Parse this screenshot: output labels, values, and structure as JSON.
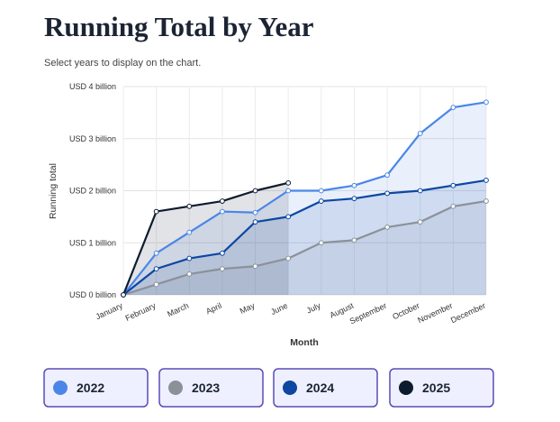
{
  "chart_data": {
    "type": "line",
    "title": "Running Total by Year",
    "subtitle": "Select years to display on the chart.",
    "x_label": "Month",
    "y_label": "Running total",
    "categories": [
      "January",
      "February",
      "March",
      "April",
      "May",
      "June",
      "July",
      "August",
      "September",
      "October",
      "November",
      "December"
    ],
    "series": [
      {
        "name": "2022",
        "color": "#4a86e8",
        "values": [
          0,
          0.8,
          1.2,
          1.6,
          1.58,
          2.0,
          2.0,
          2.1,
          2.3,
          3.1,
          3.6,
          3.7
        ]
      },
      {
        "name": "2023",
        "color": "#8a9199",
        "values": [
          0,
          0.2,
          0.4,
          0.5,
          0.55,
          0.7,
          1.0,
          1.05,
          1.3,
          1.4,
          1.7,
          1.8
        ]
      },
      {
        "name": "2024",
        "color": "#0d47a1",
        "values": [
          0,
          0.5,
          0.7,
          0.8,
          1.4,
          1.5,
          1.8,
          1.85,
          1.95,
          2.0,
          2.1,
          2.2
        ]
      },
      {
        "name": "2025",
        "color": "#0e1b2e",
        "values": [
          0,
          1.6,
          1.7,
          1.8,
          2.0,
          2.15,
          null,
          null,
          null,
          null,
          null,
          null
        ]
      }
    ],
    "ylim": [
      0,
      4
    ],
    "yticks": [
      {
        "value": 0,
        "label": "USD 0 billion"
      },
      {
        "value": 1,
        "label": "USD 1 billion"
      },
      {
        "value": 2,
        "label": "USD 2 billion"
      },
      {
        "value": 3,
        "label": "USD 3 billion"
      },
      {
        "value": 4,
        "label": "USD 4 billion"
      }
    ],
    "grid": true
  }
}
